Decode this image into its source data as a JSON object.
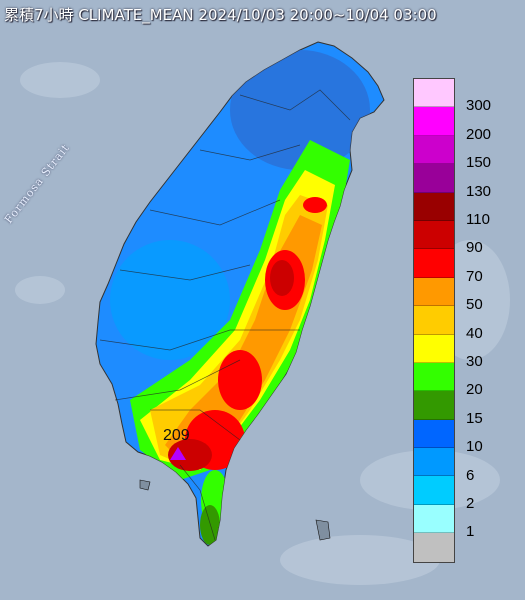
{
  "title": "累積7小時 CLIMATE_MEAN 2024/10/03 20:00~10/04 03:00",
  "map_label_strait": "Formosa Strait",
  "peak": {
    "label": "209",
    "marker": "purple-triangle",
    "marker_color": "#b400ff"
  },
  "legend": {
    "labels": [
      "300",
      "200",
      "150",
      "130",
      "110",
      "90",
      "70",
      "50",
      "40",
      "30",
      "20",
      "15",
      "10",
      "6",
      "2",
      "1"
    ],
    "colors": [
      "#ffc8ff",
      "#ff00ff",
      "#cc00cc",
      "#990099",
      "#990000",
      "#cc0000",
      "#ff0000",
      "#ff9900",
      "#ffcc00",
      "#ffff00",
      "#33ff00",
      "#339900",
      "#0066ff",
      "#0099ff",
      "#00ccff",
      "#99ffff",
      "#c0c0c0"
    ]
  },
  "colors": {
    "ocean": "#9fb3c8",
    "land_low": "#1e90ff",
    "land_high": "#cc0000"
  }
}
